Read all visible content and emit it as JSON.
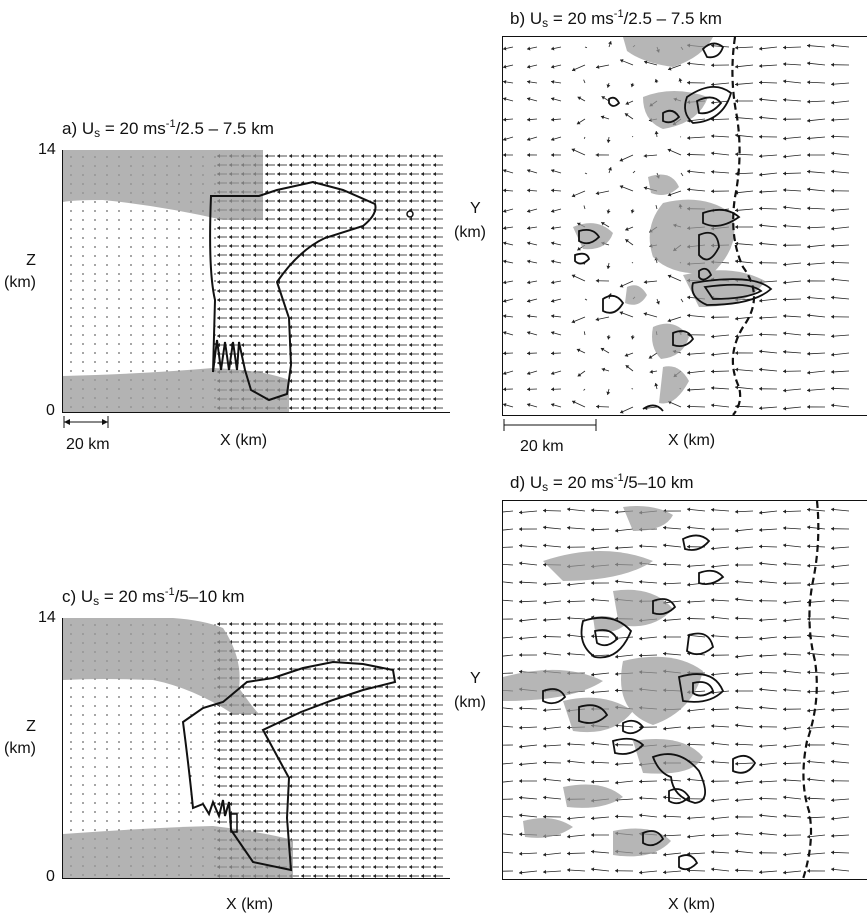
{
  "panels": {
    "a": {
      "title_prefix": "a) U",
      "title_sub": "s",
      "title_mid": " = 20 ms",
      "title_sup": "-1",
      "title_suffix": "/2.5 – 7.5 km",
      "z_top": "14",
      "z_bottom": "0",
      "z_label": "Z",
      "z_unit": "(km)",
      "x_label": "X (km)",
      "scale_label": "20 km"
    },
    "b": {
      "title_prefix": "b) U",
      "title_sub": "s",
      "title_mid": " = 20 ms",
      "title_sup": "-1",
      "title_suffix": "/2.5 – 7.5 km",
      "y_label": "Y",
      "y_unit": "(km)",
      "x_label": "X (km)",
      "scale_label": "20 km"
    },
    "c": {
      "title_prefix": "c) U",
      "title_sub": "s",
      "title_mid": " = 20 ms",
      "title_sup": "-1",
      "title_suffix": "/5–10 km",
      "z_top": "14",
      "z_bottom": "0",
      "z_label": "Z",
      "z_unit": "(km)",
      "x_label": "X (km)"
    },
    "d": {
      "title_prefix": "d) U",
      "title_sub": "s",
      "title_mid": " = 20 ms",
      "title_sup": "-1",
      "title_suffix": "/5–10 km",
      "y_label": "Y",
      "y_unit": "(km)",
      "x_label": "X (km)"
    }
  },
  "colors": {
    "shading": "#9a9a9a",
    "contour": "#111111",
    "arrow": "#222222",
    "front": "#111111"
  }
}
